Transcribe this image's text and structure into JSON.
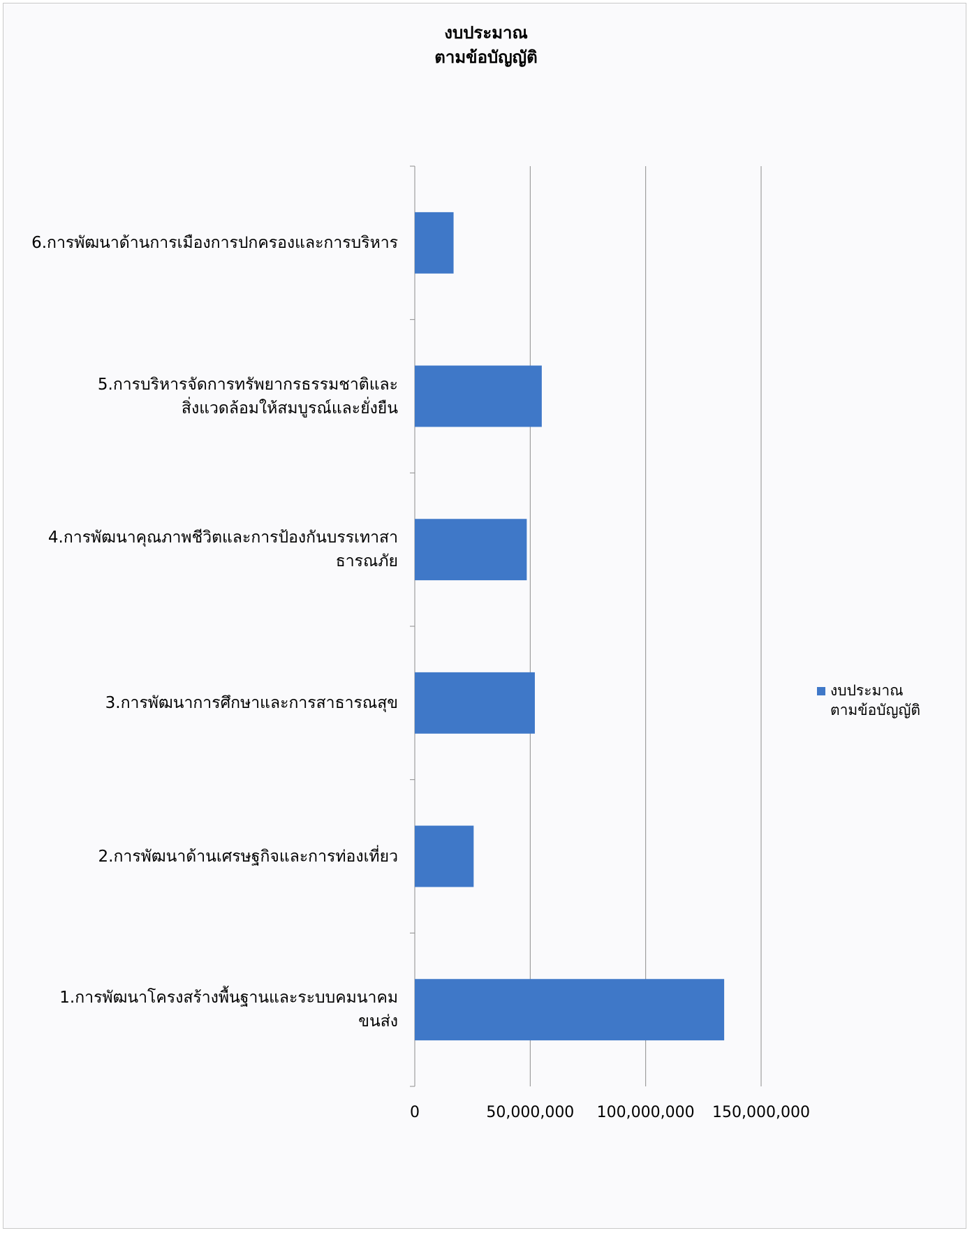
{
  "chart_data": {
    "type": "bar",
    "orientation": "horizontal",
    "title": "งบประมาณ\nตามข้อบัญญัติ",
    "title_lines": [
      "งบประมาณ",
      "ตามข้อบัญญัติ"
    ],
    "categories": [
      "1.การพัฒนาโครงสร้างพื้นฐานและระบบคมนาคม\nขนส่ง",
      "2.การพัฒนาด้านเศรษฐกิจและการท่องเที่ยว",
      "3.การพัฒนาการศึกษาและการสาธารณสุข",
      "4.การพัฒนาคุณภาพชีวิตและการป้องกันบรรเทาสา\nธารณภัย",
      "5.การบริหารจัดการทรัพยากรธรรมชาติและ\nสิ่งแวดล้อมให้สมบูรณ์และยั่งยืน",
      "6.การพัฒนาด้านการเมืองการปกครองและการบริหาร"
    ],
    "series": [
      {
        "name": "งบประมาณ\nตามข้อบัญญัติ",
        "color": "#3f78c8",
        "values": [
          134000000,
          25500000,
          52000000,
          48500000,
          55000000,
          16800000
        ]
      }
    ],
    "xlim": [
      0,
      150000000
    ],
    "xticks": [
      "0",
      "50,000,000",
      "100,000,000",
      "150,000,000"
    ],
    "xtick_values": [
      0,
      50000000,
      100000000,
      150000000
    ],
    "grid": true,
    "legend_position": "right"
  }
}
